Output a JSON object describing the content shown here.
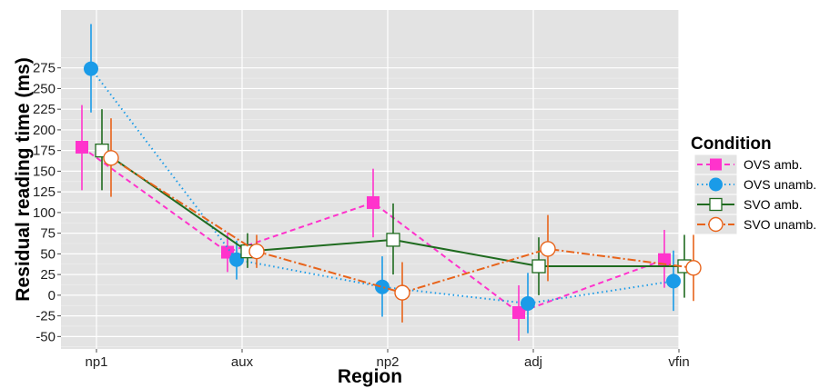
{
  "chart_data": {
    "type": "line",
    "title": "",
    "xlabel": "Region",
    "ylabel": "Residual reading time (ms)",
    "categories": [
      "np1",
      "aux",
      "np2",
      "adj",
      "vfin"
    ],
    "yticks": [
      -50,
      -25,
      0,
      25,
      50,
      75,
      100,
      125,
      150,
      175,
      200,
      225,
      250,
      275
    ],
    "ylim": [
      -65,
      345
    ],
    "grid": true,
    "legend_title": "Condition",
    "legend_position": "right",
    "series": [
      {
        "name": "OVS amb.",
        "color": "#ff33cc",
        "marker": "filled-square",
        "linestyle": "dashed",
        "values": [
          179,
          52,
          112,
          -21,
          43
        ],
        "err_low": [
          127,
          28,
          70,
          -55,
          9
        ],
        "err_high": [
          230,
          76,
          153,
          12,
          79
        ]
      },
      {
        "name": "OVS unamb.",
        "color": "#1a9be8",
        "marker": "filled-circle",
        "linestyle": "dotted",
        "values": [
          274,
          43,
          10,
          -10,
          17
        ],
        "err_low": [
          221,
          19,
          -26,
          -46,
          -19
        ],
        "err_high": [
          328,
          66,
          47,
          27,
          54
        ]
      },
      {
        "name": "SVO amb.",
        "color": "#1f6b1f",
        "marker": "open-square",
        "linestyle": "solid",
        "values": [
          175,
          53,
          67,
          35,
          35
        ],
        "err_low": [
          127,
          33,
          25,
          0,
          -3
        ],
        "err_high": [
          225,
          75,
          111,
          70,
          73
        ]
      },
      {
        "name": "SVO unamb.",
        "color": "#e8631a",
        "marker": "open-circle",
        "linestyle": "dashdot",
        "values": [
          166,
          53,
          3,
          56,
          33
        ],
        "err_low": [
          119,
          33,
          -33,
          17,
          -7
        ],
        "err_high": [
          214,
          73,
          40,
          97,
          73
        ]
      }
    ]
  }
}
